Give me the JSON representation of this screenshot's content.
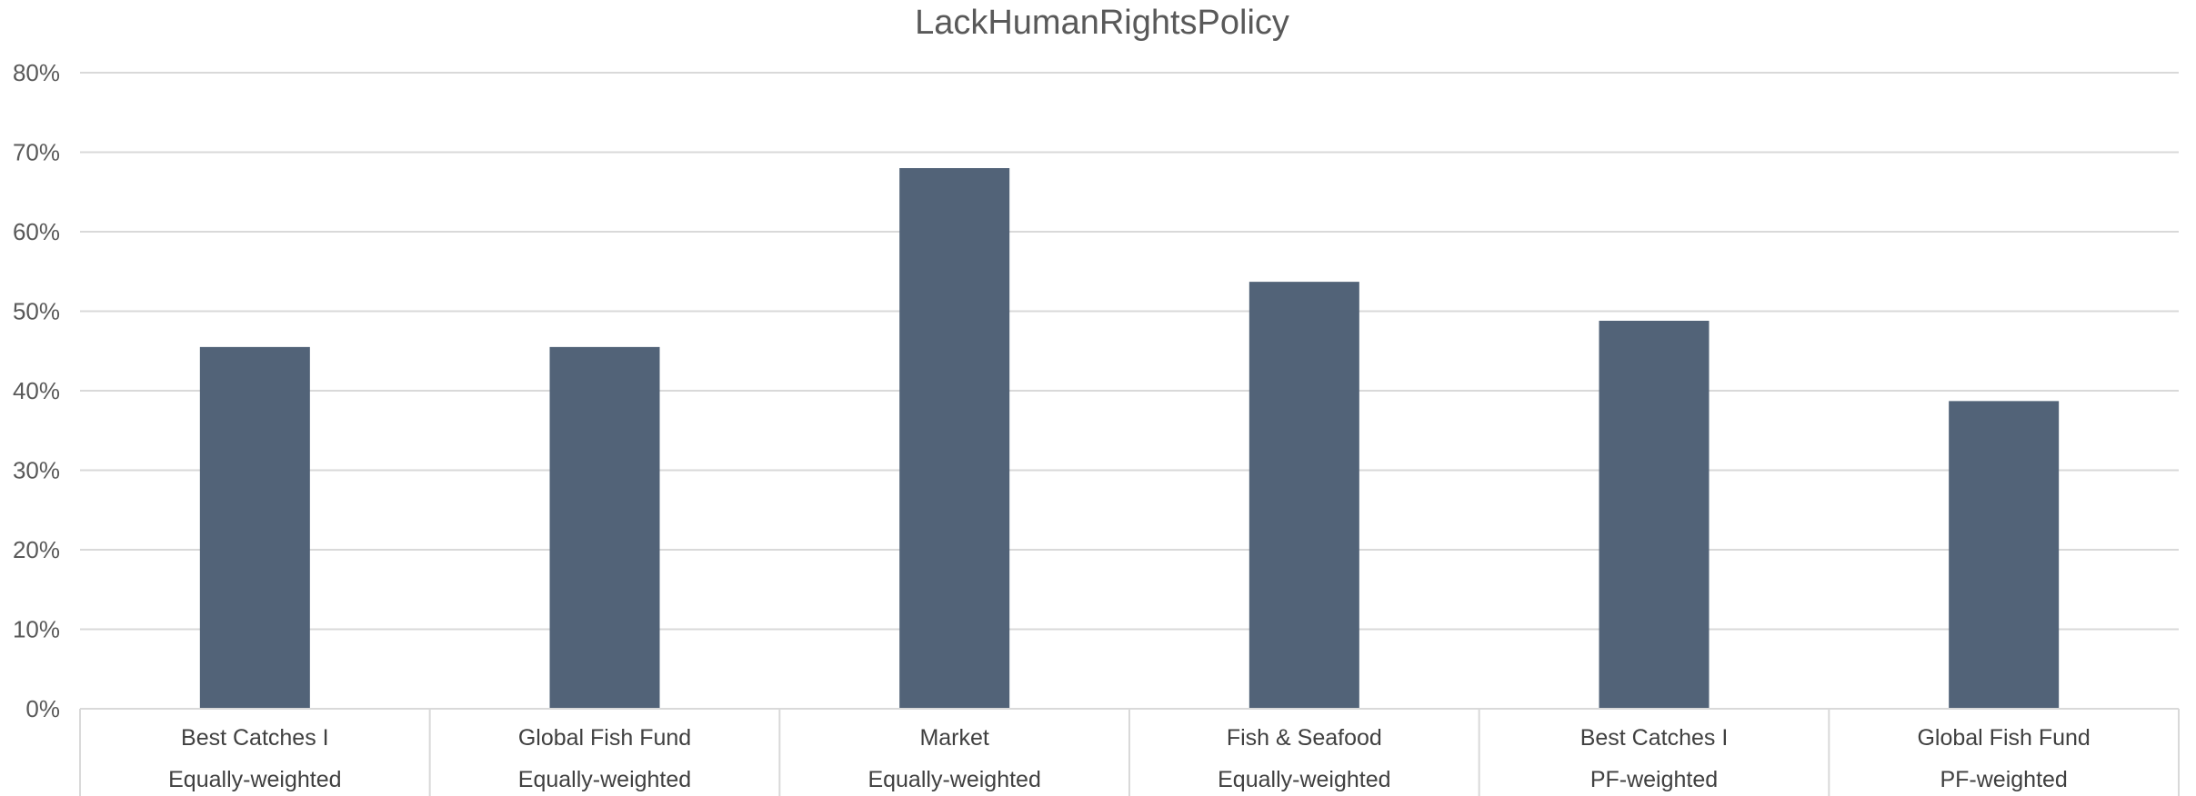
{
  "chart_data": {
    "type": "bar",
    "title": "LackHumanRightsPolicy",
    "xlabel": "",
    "ylabel": "",
    "ylim": [
      0,
      0.8
    ],
    "ytick_values": [
      0,
      0.1,
      0.2,
      0.3,
      0.4,
      0.5,
      0.6,
      0.7,
      0.8
    ],
    "ytick_labels": [
      "0%",
      "10%",
      "20%",
      "30%",
      "40%",
      "50%",
      "60%",
      "70%",
      "80%"
    ],
    "grid": true,
    "legend": "none",
    "categories": [
      {
        "line1": "Best Catches I",
        "line2": "Equally-weighted"
      },
      {
        "line1": "Global Fish Fund",
        "line2": "Equally-weighted"
      },
      {
        "line1": "Market",
        "line2": "Equally-weighted"
      },
      {
        "line1": "Fish & Seafood",
        "line2": "Equally-weighted"
      },
      {
        "line1": "Best Catches I",
        "line2": "PF-weighted"
      },
      {
        "line1": "Global Fish Fund",
        "line2": "PF-weighted"
      }
    ],
    "values": [
      0.455,
      0.455,
      0.68,
      0.537,
      0.488,
      0.387
    ],
    "colors": {
      "bar": "#526378",
      "grid": "#d9d9d9",
      "text": "#595959"
    }
  }
}
